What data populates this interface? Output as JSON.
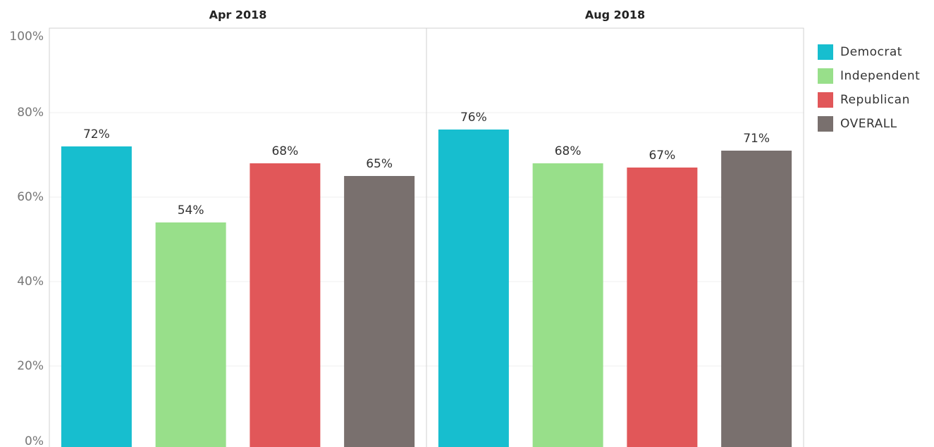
{
  "chart_data": {
    "type": "bar",
    "categories": [
      "Apr 2018",
      "Aug 2018"
    ],
    "series": [
      {
        "name": "Democrat",
        "color": "#17becf",
        "values": [
          72,
          76
        ],
        "value_labels": [
          "72%",
          "76%"
        ]
      },
      {
        "name": "Independent",
        "color": "#98df8a",
        "values": [
          54,
          68
        ],
        "value_labels": [
          "54%",
          "68%"
        ]
      },
      {
        "name": "Republican",
        "color": "#e15759",
        "values": [
          68,
          67
        ],
        "value_labels": [
          "68%",
          "67%"
        ]
      },
      {
        "name": "OVERALL",
        "color": "#79706e",
        "values": [
          65,
          71
        ],
        "value_labels": [
          "65%",
          "71%"
        ]
      }
    ],
    "ylim": [
      0,
      100
    ],
    "yticks": [
      {
        "value": 0,
        "label": "0%"
      },
      {
        "value": 20,
        "label": "20%"
      },
      {
        "value": 40,
        "label": "40%"
      },
      {
        "value": 60,
        "label": "60%"
      },
      {
        "value": 80,
        "label": "80%"
      },
      {
        "value": 100,
        "label": "100%"
      }
    ],
    "grid": true,
    "legend": "right"
  }
}
